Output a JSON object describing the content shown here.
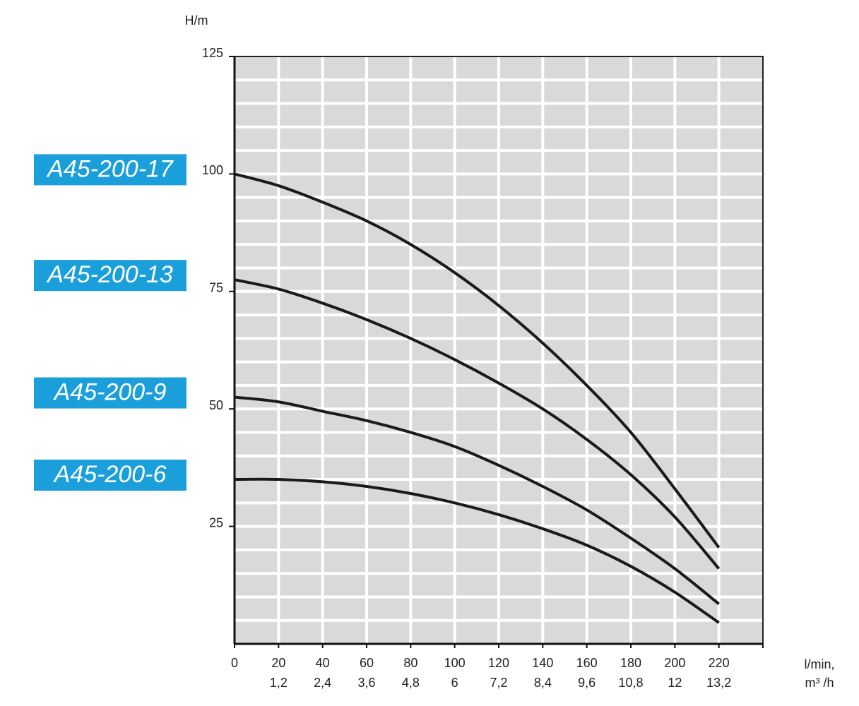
{
  "chart_data": {
    "type": "line",
    "y_label": "H/m",
    "x_label": "l/min,",
    "x2_label": "m³ /h",
    "x": [
      0,
      20,
      40,
      60,
      80,
      100,
      120,
      140,
      160,
      180,
      200,
      220
    ],
    "series": [
      {
        "name": "A45-200-17",
        "color": "#1a1a1a",
        "values": [
          100,
          97.5,
          94,
          90,
          85,
          79,
          72,
          64,
          55,
          45,
          33,
          20.5
        ]
      },
      {
        "name": "A45-200-13",
        "color": "#1a1a1a",
        "values": [
          77.5,
          75.5,
          72.5,
          69,
          65,
          60.5,
          55.5,
          50,
          43.5,
          36,
          27,
          16
        ]
      },
      {
        "name": "A45-200-9",
        "color": "#1a1a1a",
        "values": [
          52.5,
          51.5,
          49.5,
          47.5,
          45,
          42,
          38,
          33.5,
          28.5,
          22.5,
          16,
          8.5
        ]
      },
      {
        "name": "A45-200-6",
        "color": "#1a1a1a",
        "values": [
          35,
          35,
          34.5,
          33.5,
          32,
          30,
          27.5,
          24.5,
          21,
          16.5,
          11,
          4.5
        ]
      }
    ],
    "label_box_color": "#1a9fdb",
    "plot_background": "#d9d9d9",
    "grid_color": "#ffffff",
    "xlim": [
      0,
      240
    ],
    "ylim": [
      0,
      125
    ],
    "xticks": [
      0,
      20,
      40,
      60,
      80,
      100,
      120,
      140,
      160,
      180,
      200,
      220
    ],
    "x2ticks": [
      {
        "value": 20,
        "label": "1,2"
      },
      {
        "value": 40,
        "label": "2,4"
      },
      {
        "value": 60,
        "label": "3,6"
      },
      {
        "value": 80,
        "label": "4,8"
      },
      {
        "value": 100,
        "label": "6"
      },
      {
        "value": 120,
        "label": "7,2"
      },
      {
        "value": 140,
        "label": "8,4"
      },
      {
        "value": 160,
        "label": "9,6"
      },
      {
        "value": 180,
        "label": "10,8"
      },
      {
        "value": 200,
        "label": "12"
      },
      {
        "value": 220,
        "label": "13,2"
      }
    ],
    "yticks": [
      25,
      50,
      75,
      100,
      125
    ],
    "y_minor_grid": [
      5,
      10,
      15,
      20,
      25,
      30,
      35,
      40,
      45,
      50,
      55,
      60,
      65,
      70,
      75,
      80,
      85,
      90,
      95,
      100,
      105,
      110,
      115,
      120
    ],
    "grid": true
  }
}
